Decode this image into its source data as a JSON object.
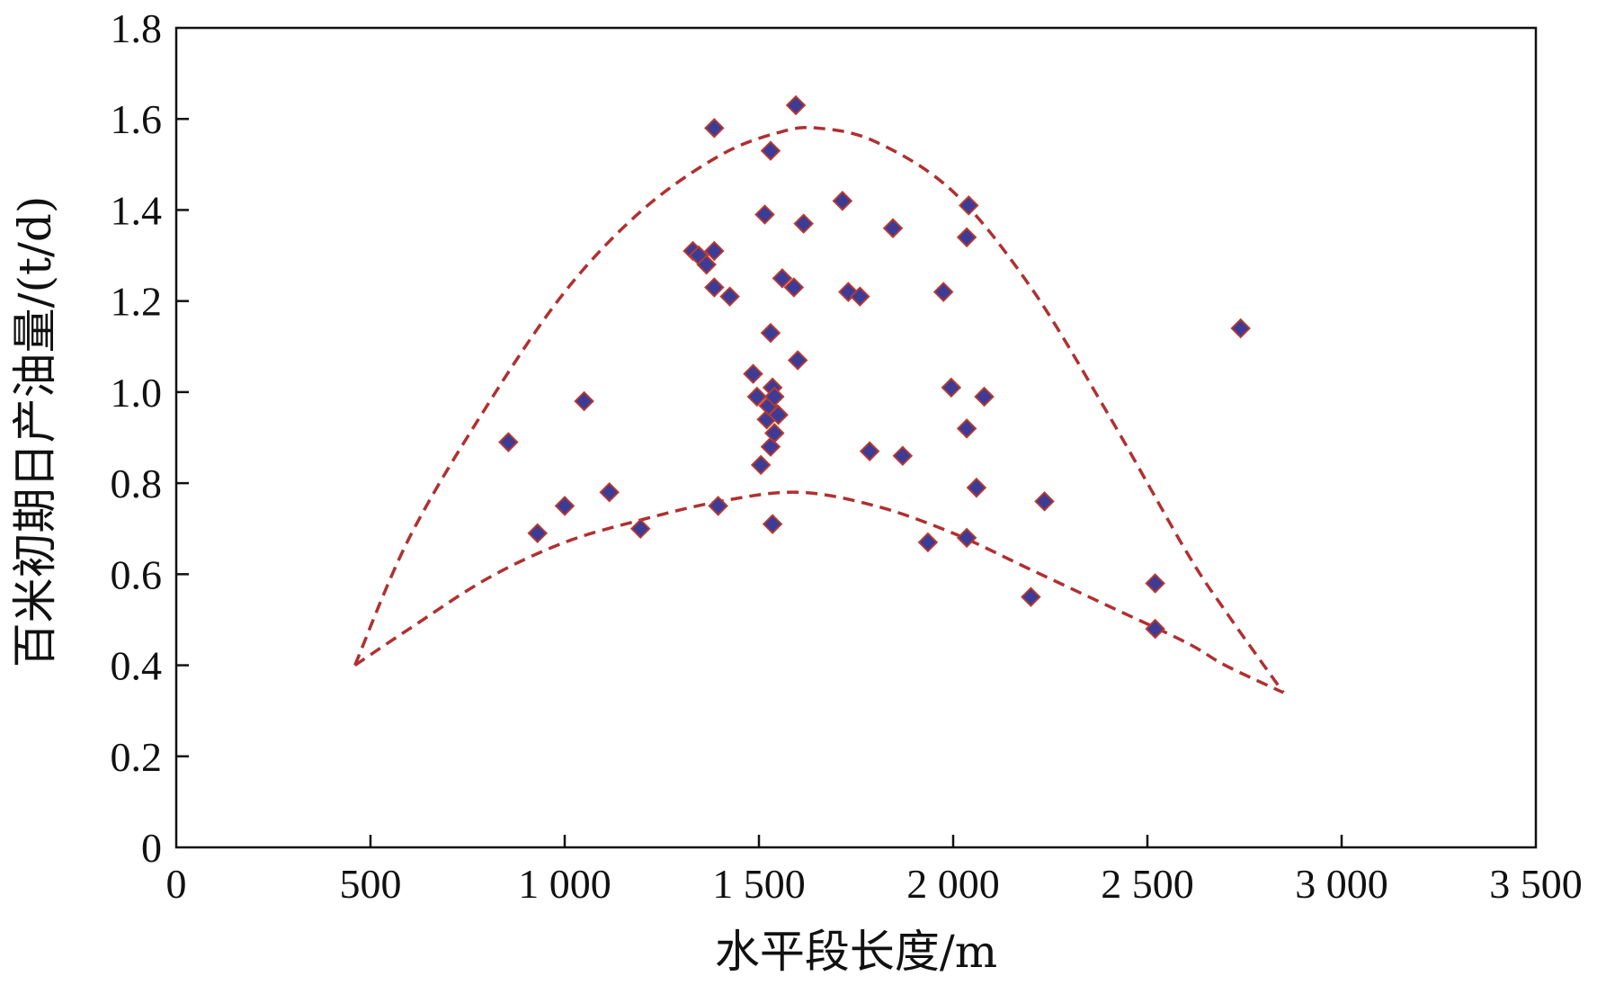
{
  "chart_data": {
    "type": "scatter",
    "title": "",
    "xlabel": "水平段长度/m",
    "ylabel": "百米初期日产油量/(t/d)",
    "xlim": [
      0,
      3500
    ],
    "ylim": [
      0,
      1.8
    ],
    "x_ticks": [
      0,
      500,
      1000,
      1500,
      2000,
      2500,
      3000,
      3500
    ],
    "x_tick_labels": [
      "0",
      "500",
      "1 000",
      "1 500",
      "2 000",
      "2 500",
      "3 000",
      "3 500"
    ],
    "y_ticks": [
      0,
      0.2,
      0.4,
      0.6,
      0.8,
      1.0,
      1.2,
      1.4,
      1.6,
      1.8
    ],
    "y_tick_labels": [
      "0",
      "0.2",
      "0.4",
      "0.6",
      "0.8",
      "1.0",
      "1.2",
      "1.4",
      "1.6",
      "1.8"
    ],
    "grid": false,
    "marker": {
      "shape": "diamond",
      "fill": "#3c3c96",
      "stroke": "#c0392b"
    },
    "points": [
      {
        "x": 855,
        "y": 0.89
      },
      {
        "x": 930,
        "y": 0.69
      },
      {
        "x": 1000,
        "y": 0.75
      },
      {
        "x": 1050,
        "y": 0.98
      },
      {
        "x": 1115,
        "y": 0.78
      },
      {
        "x": 1195,
        "y": 0.7
      },
      {
        "x": 1330,
        "y": 1.31
      },
      {
        "x": 1345,
        "y": 1.3
      },
      {
        "x": 1365,
        "y": 1.28
      },
      {
        "x": 1385,
        "y": 1.23
      },
      {
        "x": 1385,
        "y": 1.31
      },
      {
        "x": 1385,
        "y": 1.58
      },
      {
        "x": 1395,
        "y": 0.75
      },
      {
        "x": 1425,
        "y": 1.21
      },
      {
        "x": 1485,
        "y": 1.04
      },
      {
        "x": 1495,
        "y": 0.99
      },
      {
        "x": 1505,
        "y": 0.84
      },
      {
        "x": 1515,
        "y": 1.39
      },
      {
        "x": 1520,
        "y": 0.94
      },
      {
        "x": 1525,
        "y": 0.97
      },
      {
        "x": 1530,
        "y": 0.88
      },
      {
        "x": 1530,
        "y": 1.13
      },
      {
        "x": 1530,
        "y": 1.53
      },
      {
        "x": 1535,
        "y": 0.71
      },
      {
        "x": 1535,
        "y": 1.01
      },
      {
        "x": 1540,
        "y": 0.91
      },
      {
        "x": 1540,
        "y": 0.99
      },
      {
        "x": 1550,
        "y": 0.95
      },
      {
        "x": 1560,
        "y": 1.25
      },
      {
        "x": 1590,
        "y": 1.23
      },
      {
        "x": 1595,
        "y": 1.63
      },
      {
        "x": 1600,
        "y": 1.07
      },
      {
        "x": 1615,
        "y": 1.37
      },
      {
        "x": 1715,
        "y": 1.42
      },
      {
        "x": 1730,
        "y": 1.22
      },
      {
        "x": 1760,
        "y": 1.21
      },
      {
        "x": 1785,
        "y": 0.87
      },
      {
        "x": 1845,
        "y": 1.36
      },
      {
        "x": 1870,
        "y": 0.86
      },
      {
        "x": 1935,
        "y": 0.67
      },
      {
        "x": 1975,
        "y": 1.22
      },
      {
        "x": 1995,
        "y": 1.01
      },
      {
        "x": 2035,
        "y": 0.92
      },
      {
        "x": 2035,
        "y": 1.34
      },
      {
        "x": 2035,
        "y": 0.68
      },
      {
        "x": 2040,
        "y": 1.41
      },
      {
        "x": 2060,
        "y": 0.79
      },
      {
        "x": 2080,
        "y": 0.99
      },
      {
        "x": 2200,
        "y": 0.55
      },
      {
        "x": 2235,
        "y": 0.76
      },
      {
        "x": 2520,
        "y": 0.58
      },
      {
        "x": 2520,
        "y": 0.48
      },
      {
        "x": 2740,
        "y": 1.14
      }
    ],
    "envelopes": [
      {
        "name": "",
        "style": "dashed",
        "color": "#b03030",
        "points": [
          [
            460,
            0.4
          ],
          [
            600,
            0.68
          ],
          [
            800,
            0.97
          ],
          [
            1000,
            1.22
          ],
          [
            1200,
            1.4
          ],
          [
            1400,
            1.52
          ],
          [
            1550,
            1.57
          ],
          [
            1650,
            1.58
          ],
          [
            1800,
            1.55
          ],
          [
            2000,
            1.44
          ],
          [
            2200,
            1.23
          ],
          [
            2400,
            0.95
          ],
          [
            2600,
            0.65
          ],
          [
            2700,
            0.52
          ],
          [
            2850,
            0.34
          ]
        ]
      },
      {
        "name": "",
        "style": "dashed",
        "color": "#b03030",
        "points": [
          [
            460,
            0.4
          ],
          [
            600,
            0.48
          ],
          [
            800,
            0.59
          ],
          [
            1000,
            0.67
          ],
          [
            1200,
            0.72
          ],
          [
            1400,
            0.76
          ],
          [
            1600,
            0.78
          ],
          [
            1800,
            0.75
          ],
          [
            2000,
            0.69
          ],
          [
            2200,
            0.61
          ],
          [
            2400,
            0.53
          ],
          [
            2600,
            0.45
          ],
          [
            2700,
            0.4
          ],
          [
            2850,
            0.34
          ]
        ]
      }
    ]
  }
}
